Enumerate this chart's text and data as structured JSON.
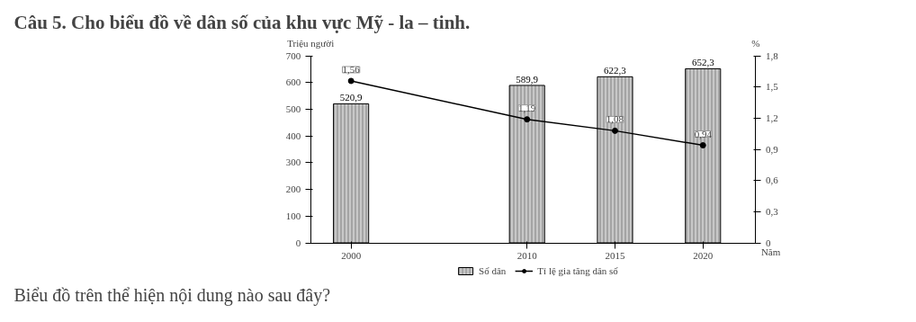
{
  "chart_data": {
    "type": "bar",
    "title": "Câu 5. Cho biểu đồ về dân số của khu vực Mỹ - la – tinh.",
    "x": [
      2000,
      2010,
      2015,
      2020
    ],
    "series": [
      {
        "name": "Số dân",
        "color": "#c8c8c8",
        "values": [
          520.9,
          589.9,
          622.3,
          652.3
        ],
        "value_labels": [
          "520,9",
          "589,9",
          "622,3",
          "652,3"
        ]
      },
      {
        "name": "Tỉ lệ gia tăng dân số",
        "type": "line",
        "axis": "y2",
        "color": "#000000",
        "values": [
          1.56,
          1.19,
          1.08,
          0.94
        ],
        "value_labels": [
          "1,56",
          "1,19",
          "1,08",
          "0,94"
        ]
      }
    ],
    "ylabel": "Triệu người",
    "y2label": "%",
    "xlabel": "Năm",
    "xlim": [
      1997.7,
      2023
    ],
    "xticks": [
      2000,
      2010,
      2015,
      2020
    ],
    "ylim": [
      0,
      700
    ],
    "yticks": [
      0,
      100,
      200,
      300,
      400,
      500,
      600,
      700
    ],
    "y2lim": [
      0,
      1.8
    ],
    "y2ticks": [
      0,
      {
        "value": 0.3,
        "label": "0,3"
      },
      {
        "value": 0.6,
        "label": "0,6"
      },
      {
        "value": 0.9,
        "label": "0,9"
      },
      {
        "value": 1.2,
        "label": "1,2"
      },
      {
        "value": 1.5,
        "label": "1,5"
      },
      {
        "value": 1.8,
        "label": "1,8"
      }
    ],
    "grid": false,
    "legend": "bottom",
    "marker": "circle",
    "line_style": "solid",
    "annotations": [
      "Biểu đồ trên thể hiện nội dung nào sau đây?"
    ]
  }
}
